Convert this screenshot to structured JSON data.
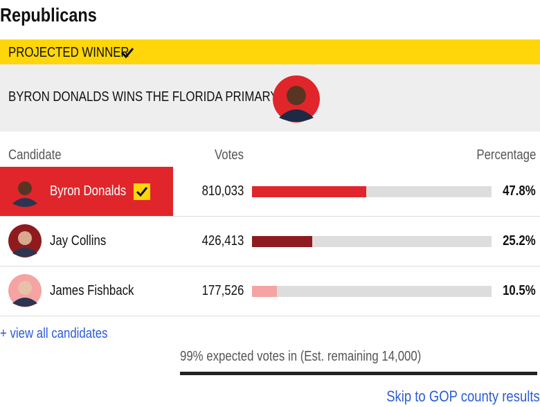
{
  "header": {
    "title": "Republicans",
    "banner": "PROJECTED WINNER",
    "headline": "BYRON DONALDS WINS THE FLORIDA PRIMARY"
  },
  "table": {
    "columns": [
      "Candidate",
      "Votes",
      "Percentage"
    ],
    "xlim": [
      0,
      100
    ],
    "rows": [
      {
        "name": "Byron Donalds",
        "votes": "810,033",
        "percentage": 47.8,
        "percentage_label": "47.8%",
        "color": "#e0262b",
        "winner": true
      },
      {
        "name": "Jay Collins",
        "votes": "426,413",
        "percentage": 25.2,
        "percentage_label": "25.2%",
        "color": "#8f1b1f",
        "winner": false
      },
      {
        "name": "James Fishback",
        "votes": "177,526",
        "percentage": 10.5,
        "percentage_label": "10.5%",
        "color": "#f5a3a3",
        "winner": false
      }
    ]
  },
  "links": {
    "view_all": "+ view all candidates",
    "skip": "Skip to GOP county results"
  },
  "status": "99% expected votes in (Est. remaining 14,000)"
}
